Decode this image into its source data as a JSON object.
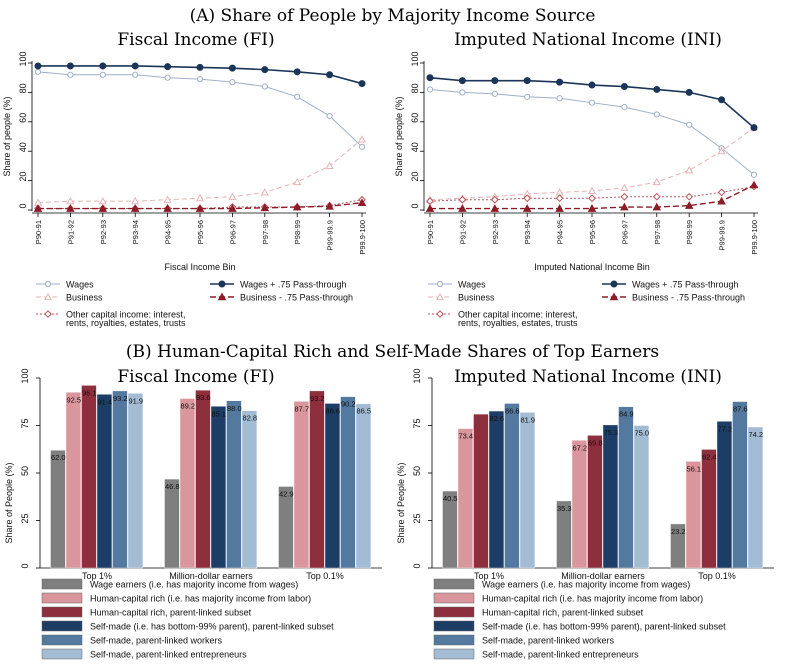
{
  "panelA": {
    "title": "(A) Share of People by Majority Income Source",
    "left_title": "Fiscal Income (FI)",
    "right_title": "Imputed National Income (INI)"
  },
  "panelB": {
    "title": "(B) Human-Capital Rich and Self-Made Shares of Top Earners",
    "left_title": "Fiscal Income (FI)",
    "right_title": "Imputed National Income (INI)"
  },
  "colors": {
    "wages": "#9fb0c9",
    "business": "#e7b2b6",
    "wages_pt": "#1b3558",
    "business_pt": "#8e1b28",
    "other_cap": "#b9545a",
    "bar_wage": "#7f7f7f",
    "bar_hc": "#d9969c",
    "bar_hc_sub": "#8e2f3d",
    "bar_sm_sub": "#1b3d66",
    "bar_sm_workers": "#54799f",
    "bar_sm_ent": "#a4bbd4"
  },
  "chart_data": [
    {
      "type": "line",
      "panel": "A-left",
      "title": "Fiscal Income (FI)",
      "xlabel": "Fiscal Income Bin",
      "ylabel": "Share of people (%)",
      "ylim": [
        0,
        100
      ],
      "yticks": [
        "0",
        "20",
        "40",
        "60",
        "80",
        "100"
      ],
      "categories": [
        "P90-91",
        "P91-92",
        "P92-93",
        "P93-94",
        "P94-95",
        "P95-96",
        "P96-97",
        "P97-98",
        "P98-99",
        "P99-99.9",
        "P99.9-100"
      ],
      "series": [
        {
          "name": "Wages",
          "key": "wages",
          "values": [
            94,
            92,
            92,
            92,
            90,
            89,
            87,
            84,
            77,
            64,
            43
          ]
        },
        {
          "name": "Business",
          "key": "business",
          "values": [
            5,
            6,
            6,
            6,
            7,
            8,
            9,
            12,
            19,
            30,
            48
          ]
        },
        {
          "name": "Other capital income: interest, rents, royalties, estates, trusts",
          "key": "other_cap",
          "values": [
            1,
            1,
            1,
            1,
            1,
            1,
            2,
            2,
            2,
            3,
            7
          ]
        },
        {
          "name": "Wages + .75 Pass-through",
          "key": "wages_pt",
          "values": [
            98,
            98,
            98,
            98,
            97.5,
            97,
            96.5,
            95.5,
            94,
            92,
            86
          ]
        },
        {
          "name": "Business - .75 Pass-through",
          "key": "business_pt",
          "values": [
            1,
            1,
            1,
            1,
            1,
            1,
            1,
            1.5,
            2,
            2.5,
            5
          ]
        }
      ],
      "legend": {
        "wages": "Wages",
        "business": "Business",
        "other_cap_1": "Other capital income: interest,",
        "other_cap_2": "rents, royalties, estates, trusts",
        "wages_pt": "Wages + .75 Pass-through",
        "business_pt": "Business - .75 Pass-through"
      },
      "legend_position": "bottom"
    },
    {
      "type": "line",
      "panel": "A-right",
      "title": "Imputed National Income (INI)",
      "xlabel": "Imputed National Income Bin",
      "ylabel": "Share of people (%)",
      "ylim": [
        0,
        100
      ],
      "yticks": [
        "0",
        "20",
        "40",
        "60",
        "80",
        "100"
      ],
      "categories": [
        "P90-91",
        "P91-92",
        "P92-93",
        "P93-94",
        "P94-95",
        "P95-96",
        "P96-97",
        "P97-98",
        "P98-99",
        "P99-99.9",
        "P99.9-100"
      ],
      "series": [
        {
          "name": "Wages",
          "key": "wages",
          "values": [
            82,
            80,
            79,
            77,
            76,
            73,
            70,
            65,
            58,
            42,
            24
          ]
        },
        {
          "name": "Business",
          "key": "business",
          "values": [
            7,
            8,
            9,
            11,
            12,
            13,
            15,
            19,
            27,
            40,
            56
          ]
        },
        {
          "name": "Other capital income: interest, rents, royalties, estates, trusts",
          "key": "other_cap",
          "values": [
            6,
            7,
            7,
            8,
            8,
            8,
            9,
            9,
            9,
            12,
            16
          ]
        },
        {
          "name": "Wages + .75 Pass-through",
          "key": "wages_pt",
          "values": [
            90,
            88,
            88,
            88,
            87,
            85,
            84,
            82,
            80,
            75,
            56
          ]
        },
        {
          "name": "Business - .75 Pass-through",
          "key": "business_pt",
          "values": [
            1,
            1,
            1,
            1,
            1,
            1,
            2,
            2,
            3,
            6,
            17
          ]
        }
      ],
      "legend": {
        "wages": "Wages",
        "business": "Business",
        "other_cap_1": "Other capital income: interest,",
        "other_cap_2": "rents, royalties, estates, trusts",
        "wages_pt": "Wages + .75 Pass-through",
        "business_pt": "Business - .75 Pass-through"
      },
      "legend_position": "bottom"
    },
    {
      "type": "bar",
      "panel": "B-left",
      "title": "Fiscal Income (FI)",
      "ylabel": "Share of People (%)",
      "ylim": [
        0,
        100
      ],
      "yticks": [
        "0",
        "25",
        "50",
        "75",
        "100"
      ],
      "categories": [
        "Top 1%",
        "Million-dollar earners",
        "Top 0.1%"
      ],
      "series": [
        {
          "name": "Wage earners (i.e. has majority income from wages)",
          "key": "bar_wage",
          "values": [
            62.0,
            46.8,
            42.9
          ],
          "labels": [
            "62.0",
            "46.8",
            "42.9"
          ]
        },
        {
          "name": "Human-capital rich (i.e. has majority income from labor)",
          "key": "bar_hc",
          "values": [
            92.5,
            89.2,
            87.7
          ],
          "labels": [
            "92.5",
            "89.2",
            "87.7"
          ]
        },
        {
          "name": "Human-capital rich, parent-linked subset",
          "key": "bar_hc_sub",
          "values": [
            96.1,
            93.6,
            93.2
          ],
          "labels": [
            "96.1",
            "93.6",
            "93.2"
          ]
        },
        {
          "name": "Self-made (i.e. has bottom-99% parent), parent-linked subset",
          "key": "bar_sm_sub",
          "values": [
            91.4,
            85.1,
            86.6
          ],
          "labels": [
            "91.4",
            "85.1",
            "86.6"
          ]
        },
        {
          "name": "Self-made, parent-linked workers",
          "key": "bar_sm_workers",
          "values": [
            93.2,
            88.0,
            90.2
          ],
          "labels": [
            "93.2",
            "88.0",
            "90.2"
          ]
        },
        {
          "name": "Self-made, parent-linked entrepreneurs",
          "key": "bar_sm_ent",
          "values": [
            91.9,
            82.8,
            86.5
          ],
          "labels": [
            "91.9",
            "82.8",
            "86.5"
          ]
        }
      ],
      "legend_position": "bottom"
    },
    {
      "type": "bar",
      "panel": "B-right",
      "title": "Imputed National Income (INI)",
      "ylabel": "Share of People (%)",
      "ylim": [
        0,
        100
      ],
      "yticks": [
        "0",
        "25",
        "50",
        "75",
        "100"
      ],
      "categories": [
        "Top 1%",
        "Million-dollar earners",
        "Top 0.1%"
      ],
      "series": [
        {
          "name": "Wage earners (i.e. has majority income from wages)",
          "key": "bar_wage",
          "values": [
            40.5,
            35.3,
            23.2
          ],
          "labels": [
            "40.5",
            "35.3",
            "23.2"
          ]
        },
        {
          "name": "Human-capital rich (i.e. has majority income from labor)",
          "key": "bar_hc",
          "values": [
            73.4,
            67.2,
            56.1
          ],
          "labels": [
            "73.4",
            "67.2",
            "56.1"
          ]
        },
        {
          "name": "Human-capital rich, parent-linked subset",
          "key": "bar_hc_sub",
          "values": [
            81.0,
            69.8,
            62.4
          ],
          "labels": [
            "",
            "69.8",
            "62.4"
          ]
        },
        {
          "name": "Self-made (i.e. has bottom-99% parent), parent-linked subset",
          "key": "bar_sm_sub",
          "values": [
            82.6,
            75.3,
            77.2
          ],
          "labels": [
            "82.6",
            "75.3",
            "77.2"
          ]
        },
        {
          "name": "Self-made, parent-linked workers",
          "key": "bar_sm_workers",
          "values": [
            86.6,
            84.9,
            87.6
          ],
          "labels": [
            "86.6",
            "84.9",
            "87.6"
          ]
        },
        {
          "name": "Self-made, parent-linked entrepreneurs",
          "key": "bar_sm_ent",
          "values": [
            81.9,
            75.0,
            74.2
          ],
          "labels": [
            "81.9",
            "75.0",
            "74.2"
          ]
        }
      ],
      "legend_position": "bottom"
    }
  ]
}
